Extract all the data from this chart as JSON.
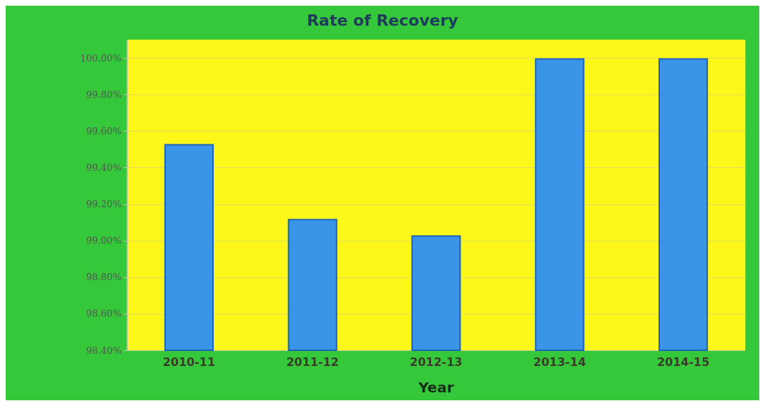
{
  "chart_data": {
    "type": "bar",
    "title": "Rate of Recovery",
    "xlabel": "Year",
    "categories": [
      "2010-11",
      "2011-12",
      "2012-13",
      "2013-14",
      "2014-15"
    ],
    "values": [
      99.53,
      99.12,
      99.03,
      100.0,
      100.0
    ],
    "color": "#3a94e8",
    "ylim": [
      98.4,
      100.1
    ],
    "yticks": [
      {
        "value": 98.4,
        "label": "98.40%"
      },
      {
        "value": 98.6,
        "label": "98.60%"
      },
      {
        "value": 98.8,
        "label": "98.80%"
      },
      {
        "value": 99.0,
        "label": "99.00%"
      },
      {
        "value": 99.2,
        "label": "99.20%"
      },
      {
        "value": 99.4,
        "label": "99.40%"
      },
      {
        "value": 99.6,
        "label": "99.60%"
      },
      {
        "value": 99.8,
        "label": "99.80%"
      },
      {
        "value": 100.0,
        "label": "100.00%"
      }
    ],
    "grid": "y"
  }
}
